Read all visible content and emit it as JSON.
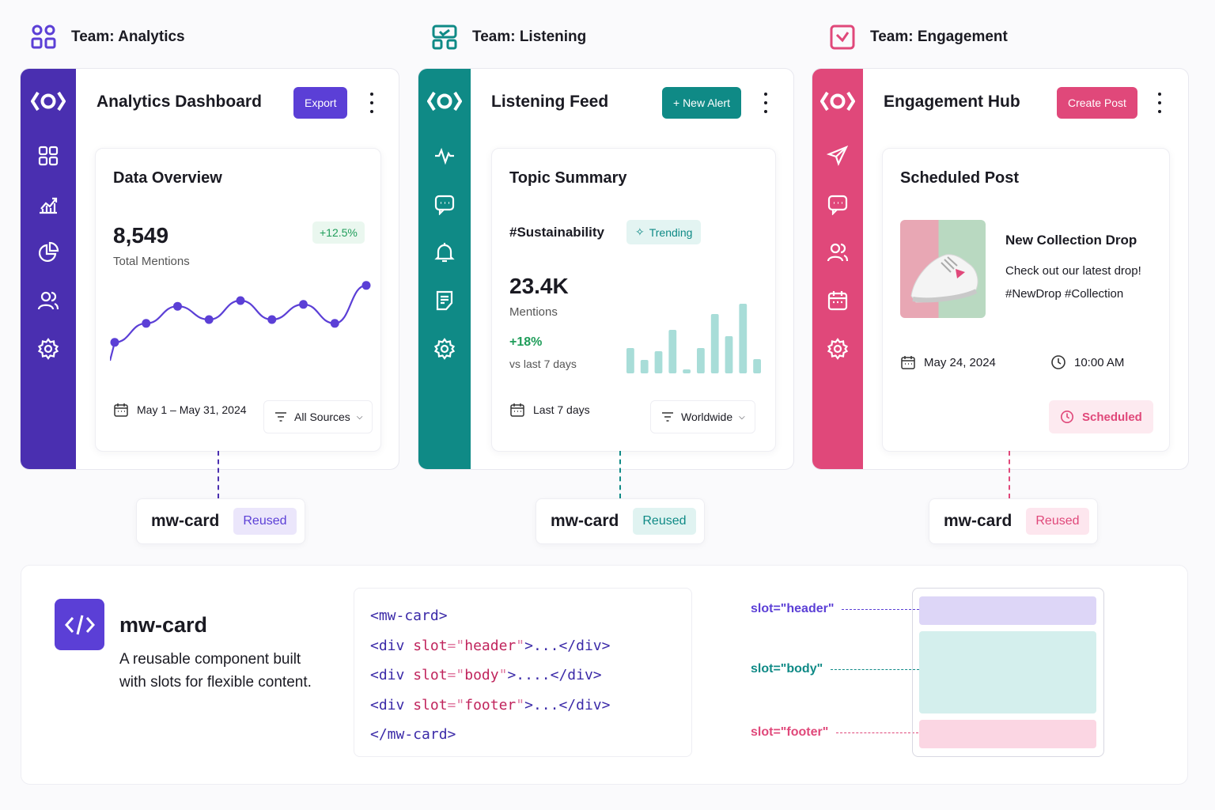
{
  "teams": [
    {
      "header": "Team: Analytics",
      "icon": "team-grid-icon",
      "accent": "#4a2fb0",
      "panel_title": "Analytics Dashboard",
      "button": "Export",
      "button_color": "#5b3fd6",
      "nav_icons": [
        "grid-icon",
        "chart-icon",
        "pie-icon",
        "users-icon",
        "settings-icon"
      ],
      "card": {
        "title": "Data Overview",
        "metric": "8,549",
        "metric_label": "Total Mentions",
        "delta": "+12.5%",
        "footer_date": "May 1 – May 31, 2024",
        "footer_dropdown": "All Sources"
      },
      "chip": {
        "name": "mw-card",
        "tag": "Reused"
      }
    },
    {
      "header": "Team: Listening",
      "icon": "team-listen-icon",
      "accent": "#0f8a86",
      "panel_title": "Listening Feed",
      "button": "+ New Alert",
      "button_color": "#0f8a86",
      "nav_icons": [
        "activity-icon",
        "message-icon",
        "bell-icon",
        "document-icon",
        "settings-icon"
      ],
      "card": {
        "title": "Topic Summary",
        "topic": "#Sustainability",
        "badge": "Trending",
        "metric": "23.4K",
        "metric_label": "Mentions",
        "delta": "+18%",
        "delta_label": "vs last 7 days",
        "footer_date": "Last 7 days",
        "footer_dropdown": "Worldwide"
      },
      "chip": {
        "name": "mw-card",
        "tag": "Reused"
      }
    },
    {
      "header": "Team: Engagement",
      "icon": "team-heart-icon",
      "accent": "#e0487a",
      "panel_title": "Engagement Hub",
      "button": "Create Post",
      "button_color": "#e0487a",
      "nav_icons": [
        "send-icon",
        "message-icon",
        "users-icon",
        "calendar-icon",
        "settings-icon"
      ],
      "card": {
        "title": "Scheduled Post",
        "post_title": "New Collection Drop",
        "post_body_1": "Check out our latest drop!",
        "post_body_2": "#NewDrop #Collection",
        "date": "May 24, 2024",
        "time": "10:00 AM",
        "status": "Scheduled"
      },
      "chip": {
        "name": "mw-card",
        "tag": "Reused"
      }
    }
  ],
  "component": {
    "name": "mw-card",
    "desc_1": "A reusable component built",
    "desc_2": "with slots for flexible content.",
    "code": {
      "open": "<mw-card>",
      "close": "</mw-card>",
      "lines": [
        {
          "slot": "header",
          "tail": ">...</div>"
        },
        {
          "slot": "body",
          "tail": ">....</div>"
        },
        {
          "slot": "footer",
          "tail": ">...</div>"
        }
      ]
    },
    "slots": [
      {
        "label": "slot=\"header\"",
        "color": "#5b3fd6",
        "fill": "#ddd6f7"
      },
      {
        "label": "slot=\"body\"",
        "color": "#0f8a86",
        "fill": "#d4efed"
      },
      {
        "label": "slot=\"footer\"",
        "color": "#e0487a",
        "fill": "#fbd6e3"
      }
    ]
  },
  "chart_data": [
    {
      "type": "line",
      "x": [
        0,
        1,
        2,
        3,
        4,
        5,
        6,
        7,
        8
      ],
      "values": [
        38,
        48,
        57,
        50,
        60,
        50,
        58,
        48,
        68
      ],
      "ylim": [
        30,
        75
      ],
      "color": "#5b3fd6"
    },
    {
      "type": "bar",
      "values": [
        32,
        17,
        28,
        55,
        5,
        32,
        75,
        47,
        88,
        18
      ],
      "ylim": [
        0,
        100
      ],
      "color": "#a8ddd8"
    }
  ]
}
